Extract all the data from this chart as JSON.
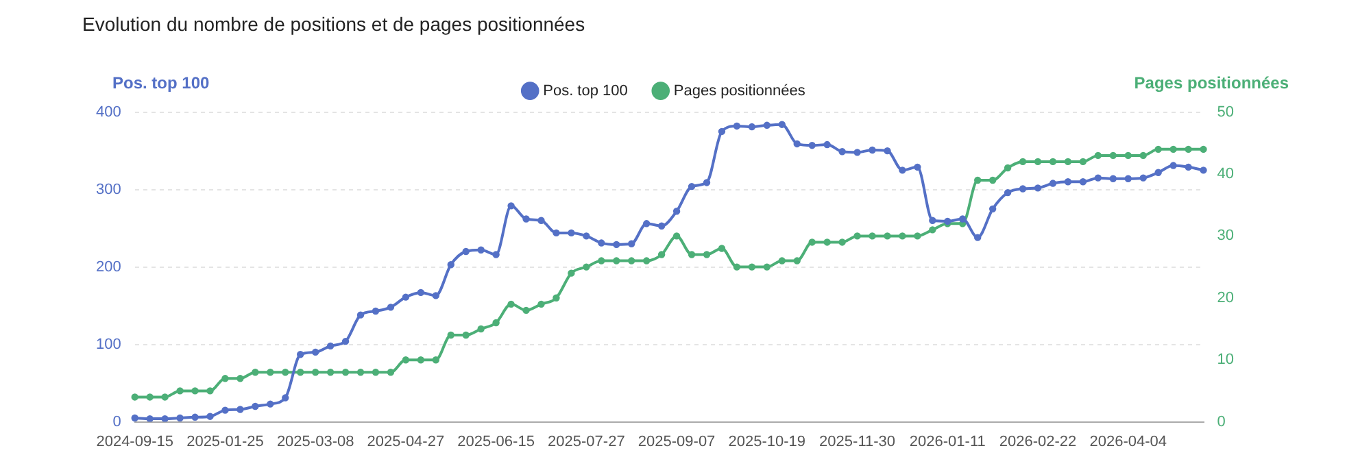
{
  "chart_data": {
    "type": "line",
    "title": "Evolution du nombre de positions et de pages positionnées",
    "ylabel": "Pos. top 100",
    "y2label": "Pages positionnées",
    "categories": [
      "2024-09-15",
      null,
      null,
      null,
      null,
      null,
      "2025-01-25",
      null,
      null,
      null,
      null,
      null,
      "2025-03-08",
      null,
      null,
      null,
      null,
      null,
      "2025-04-27",
      null,
      null,
      null,
      null,
      null,
      "2025-06-15",
      null,
      null,
      null,
      null,
      null,
      "2025-07-27",
      null,
      null,
      null,
      null,
      null,
      "2025-09-07",
      null,
      null,
      null,
      null,
      null,
      "2025-10-19",
      null,
      null,
      null,
      null,
      null,
      "2025-11-30",
      null,
      null,
      null,
      null,
      null,
      "2026-01-11",
      null,
      null,
      null,
      null,
      null,
      "2026-02-22",
      null,
      null,
      null,
      null,
      null,
      "2026-04-04",
      null,
      null,
      null,
      null,
      null
    ],
    "series": [
      {
        "name": "Pos. top 100",
        "color": "#5470c6",
        "values": [
          5,
          4,
          4,
          5,
          6,
          7,
          15,
          16,
          20,
          23,
          31,
          87,
          90,
          98,
          104,
          138,
          143,
          148,
          161,
          167,
          163,
          203,
          220,
          222,
          216,
          279,
          262,
          260,
          244,
          244,
          240,
          231,
          229,
          230,
          256,
          253,
          272,
          304,
          309,
          375,
          382,
          381,
          383,
          384,
          359,
          357,
          358,
          349,
          348,
          351,
          350,
          325,
          329,
          260,
          259,
          262,
          238,
          275,
          296,
          301,
          302,
          308,
          310,
          310,
          315,
          314,
          314,
          315,
          322,
          331,
          329,
          325
        ]
      },
      {
        "name": "Pages positionnées",
        "color": "#4caf77",
        "axis": "y2",
        "values": [
          4,
          4,
          4,
          5,
          5,
          5,
          7,
          7,
          8,
          8,
          8,
          8,
          8,
          8,
          8,
          8,
          8,
          8,
          10,
          10,
          10,
          14,
          14,
          15,
          16,
          19,
          18,
          19,
          20,
          24,
          25,
          26,
          26,
          26,
          26,
          27,
          30,
          27,
          27,
          28,
          25,
          25,
          25,
          26,
          26,
          29,
          29,
          29,
          30,
          30,
          30,
          30,
          30,
          31,
          32,
          32,
          39,
          39,
          41,
          42,
          42,
          42,
          42,
          42,
          43,
          43,
          43,
          43,
          44,
          44,
          44,
          44
        ]
      }
    ],
    "ylim": [
      0,
      400
    ],
    "yticks": [
      0,
      100,
      200,
      300,
      400
    ],
    "y2lim": [
      0,
      50
    ],
    "y2ticks": [
      0,
      10,
      20,
      30,
      40,
      50
    ],
    "grid": "y",
    "legend": "top",
    "marker": "circle"
  }
}
